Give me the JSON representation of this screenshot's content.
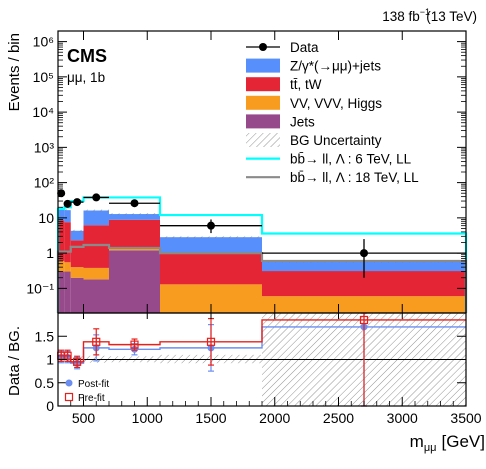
{
  "header": {
    "lumi_label": "138 fb",
    "lumi_exp": "−1",
    "energy_label": "(13 TeV)",
    "experiment": "CMS",
    "channel_label": "μμ, 1b"
  },
  "colors": {
    "zjets": "#5790fc",
    "ttbar": "#e42536",
    "diboson": "#f89c20",
    "jets": "#964a8b",
    "signal_6tev": "#00ffff",
    "signal_18tev": "#8a8a8a",
    "data": "#000000",
    "postfit": "#6b8ef0",
    "prefit": "#e8201b"
  },
  "chart_data": [
    {
      "type": "area",
      "panel": "main",
      "ylabel": "Events / bin",
      "yscale": "log",
      "ylim": [
        0.02,
        2000000
      ],
      "xlim": [
        300,
        3500
      ],
      "ytick_labels": [
        "10⁻¹",
        "1",
        "10",
        "10²",
        "10³",
        "10⁴",
        "10⁵",
        "10⁶"
      ],
      "ytick_values": [
        0.1,
        1,
        10,
        100,
        1000,
        10000,
        100000,
        1000000
      ],
      "bin_edges": [
        300,
        350,
        400,
        500,
        700,
        1100,
        1900,
        3500
      ],
      "stack": [
        {
          "name": "Jets",
          "key": "jets",
          "values": [
            0.3,
            0.3,
            0.2,
            0.18,
            1.2,
            0.02,
            0.02
          ]
        },
        {
          "name": "VV, VVV, Higgs",
          "key": "diboson",
          "values": [
            0.3,
            0.25,
            0.2,
            0.2,
            0.13,
            0.11,
            0.04
          ]
        },
        {
          "name": "tt̄, tW",
          "key": "ttbar",
          "values": [
            8.0,
            7.0,
            1.9,
            5.8,
            7.5,
            0.9,
            0.25
          ]
        },
        {
          "name": "Z/γ*(→μμ)+jets",
          "key": "zjets",
          "values": [
            10.0,
            9.0,
            2.0,
            10.0,
            4.0,
            1.8,
            0.27
          ]
        }
      ],
      "signals": [
        {
          "name": "bb̄→ ll,   Λ : 6 TeV, LL",
          "key": "signal_6tev",
          "values": [
            18,
            20,
            30,
            38,
            38,
            12,
            3.6
          ]
        },
        {
          "name": "bb̄→ ll,   Λ : 18 TeV, LL",
          "key": "signal_18tev",
          "values": [
            1.1,
            1.1,
            1.5,
            1.7,
            1.4,
            1.0,
            0.6
          ]
        }
      ],
      "data": {
        "name": "Data",
        "x": [
          325,
          375,
          450,
          600,
          900,
          1500,
          2700
        ],
        "y": [
          50,
          25,
          28,
          38,
          26,
          6,
          1
        ],
        "yerr_up": [
          8,
          6,
          6,
          7,
          6,
          3,
          1.5
        ],
        "yerr_down": [
          7,
          5,
          5,
          6,
          5,
          2.3,
          0.8
        ]
      },
      "legend": [
        "Data",
        "Z/γ*(→μμ)+jets",
        "tt̄, tW",
        "VV, VVV, Higgs",
        "Jets",
        "BG Uncertainty",
        "bb̄→ ll,   Λ : 6 TeV, LL",
        "bb̄→ ll,   Λ : 18 TeV, LL"
      ],
      "legend_position": "top-right"
    },
    {
      "type": "scatter",
      "panel": "ratio",
      "ylabel": "Data / BG.",
      "xlabel": "m",
      "xlabel_sub": "μμ",
      "xlabel_unit": "[GeV]",
      "ylim": [
        0,
        2
      ],
      "xlim": [
        300,
        3500
      ],
      "ytick_labels": [
        "0",
        "0.5",
        "1",
        "1.5"
      ],
      "ytick_values": [
        0,
        0.5,
        1,
        1.5
      ],
      "xtick_labels": [
        "500",
        "1000",
        "1500",
        "2000",
        "2500",
        "3000",
        "3500"
      ],
      "xtick_values": [
        500,
        1000,
        1500,
        2000,
        2500,
        3000,
        3500
      ],
      "bin_edges": [
        300,
        350,
        400,
        500,
        700,
        1100,
        1900,
        3500
      ],
      "uncertainty_band": {
        "low": [
          0.95,
          0.93,
          0.94,
          0.93,
          0.94,
          0.92,
          0.0
        ],
        "high": [
          1.05,
          1.07,
          1.07,
          1.08,
          1.07,
          1.1,
          2.0
        ]
      },
      "series": [
        {
          "name": "Post-fit",
          "key": "postfit",
          "x": [
            325,
            375,
            450,
            600,
            900,
            1500,
            2700
          ],
          "y": [
            1.05,
            1.05,
            0.92,
            1.25,
            1.22,
            1.25,
            1.7
          ],
          "yerr": [
            0.12,
            0.12,
            0.12,
            0.28,
            0.12,
            0.5,
            1.7
          ],
          "line": [
            1.05,
            1.05,
            0.92,
            1.25,
            1.22,
            1.25,
            1.7
          ]
        },
        {
          "name": "Pre-fit",
          "key": "prefit",
          "x": [
            325,
            375,
            450,
            600,
            900,
            1500,
            2700
          ],
          "y": [
            1.08,
            1.08,
            0.95,
            1.38,
            1.32,
            1.38,
            1.85
          ],
          "yerr": [
            0.12,
            0.12,
            0.12,
            0.28,
            0.12,
            0.5,
            1.85
          ],
          "line": [
            1.08,
            1.08,
            0.95,
            1.38,
            1.32,
            1.38,
            1.85
          ]
        }
      ],
      "legend": [
        "Post-fit",
        "Pre-fit"
      ],
      "legend_position": "bottom-left"
    }
  ]
}
